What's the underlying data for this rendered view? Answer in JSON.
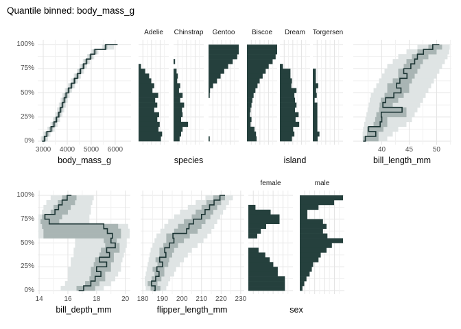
{
  "title": "Quantile binned: body_mass_g",
  "colors": {
    "bar": "#25403d",
    "line": "#1b3433",
    "band_inner": "#a9b5b4",
    "band_outer": "#dfe4e4",
    "grid_major": "#e3e3e3",
    "grid_minor": "#f1f1f1",
    "tick_text": "#4d4d4d",
    "title_text": "#000000",
    "background": "#ffffff"
  },
  "y_axis": {
    "tick_labels": [
      "100%",
      "75%",
      "50%",
      "25%",
      "0%"
    ],
    "tick_levels": [
      100,
      75,
      50,
      25,
      0
    ]
  },
  "quantile_levels_pct": [
    0,
    5,
    10,
    15,
    20,
    25,
    30,
    35,
    40,
    45,
    50,
    55,
    60,
    65,
    70,
    75,
    80,
    85,
    90,
    95,
    100
  ],
  "bars_order": "top_to_bottom",
  "chart_data": [
    {
      "id": "body_mass_g",
      "type": "quantile-step",
      "row": 0,
      "xlabel": "body_mass_g",
      "x_ticks": [
        3000,
        4000,
        5000,
        6000
      ],
      "x_tick_labels": [
        "3000",
        "4000",
        "5000",
        "6000"
      ],
      "x_minor": [
        3500,
        4500,
        5500
      ],
      "x_range": [
        2770,
        6660
      ],
      "x_min_cap": 2950,
      "x_max_cap": 6100,
      "bin_values": [
        3050,
        3150,
        3325,
        3450,
        3550,
        3650,
        3725,
        3800,
        3875,
        3950,
        4050,
        4175,
        4300,
        4425,
        4550,
        4675,
        4800,
        4975,
        5150,
        5600
      ],
      "band_inner": [
        [
          2980,
          3120
        ],
        [
          3080,
          3220
        ],
        [
          3255,
          3395
        ],
        [
          3380,
          3520
        ],
        [
          3480,
          3620
        ],
        [
          3580,
          3720
        ],
        [
          3655,
          3795
        ],
        [
          3730,
          3870
        ],
        [
          3805,
          3945
        ],
        [
          3880,
          4020
        ],
        [
          3980,
          4120
        ],
        [
          4105,
          4245
        ],
        [
          4230,
          4370
        ],
        [
          4355,
          4495
        ],
        [
          4480,
          4620
        ],
        [
          4605,
          4745
        ],
        [
          4730,
          4870
        ],
        [
          4905,
          5045
        ],
        [
          5080,
          5220
        ],
        [
          5530,
          5670
        ]
      ],
      "band_outer": [
        [
          2900,
          3200
        ],
        [
          3000,
          3300
        ],
        [
          3175,
          3475
        ],
        [
          3300,
          3600
        ],
        [
          3400,
          3700
        ],
        [
          3500,
          3800
        ],
        [
          3575,
          3875
        ],
        [
          3650,
          3950
        ],
        [
          3725,
          4025
        ],
        [
          3800,
          4100
        ],
        [
          3900,
          4200
        ],
        [
          4025,
          4325
        ],
        [
          4150,
          4450
        ],
        [
          4275,
          4575
        ],
        [
          4400,
          4700
        ],
        [
          4525,
          4825
        ],
        [
          4650,
          4950
        ],
        [
          4825,
          5125
        ],
        [
          5000,
          5300
        ],
        [
          5450,
          5950
        ]
      ],
      "y_labels": true
    },
    {
      "id": "species",
      "type": "facet-bars",
      "row": 0,
      "xlabel": "species",
      "facets": [
        {
          "label": "Adelie",
          "bars": [
            0,
            0,
            0,
            0,
            0.08,
            0.22,
            0.35,
            0.42,
            0.52,
            0.46,
            0.65,
            0.55,
            0.62,
            0.52,
            0.68,
            0.62,
            0.7,
            0.66,
            0.78,
            0.74
          ]
        },
        {
          "label": "Chinstrap",
          "bars": [
            0,
            0,
            0,
            0.05,
            0,
            0.1,
            0.14,
            0.12,
            0.22,
            0.18,
            0.3,
            0.22,
            0.35,
            0.28,
            0.3,
            0.25,
            0.48,
            0.3,
            0.25,
            0.2
          ]
        },
        {
          "label": "Gentoo",
          "bars": [
            1,
            1,
            0.95,
            0.8,
            0.65,
            0.52,
            0.4,
            0.28,
            0.15,
            0.05,
            0.04,
            0,
            0,
            0,
            0,
            0,
            0,
            0,
            0,
            0.04
          ]
        }
      ]
    },
    {
      "id": "island",
      "type": "facet-bars",
      "row": 0,
      "xlabel": "island",
      "facets": [
        {
          "label": "Biscoe",
          "bars": [
            1,
            1,
            0.95,
            0.85,
            0.72,
            0.62,
            0.52,
            0.42,
            0.35,
            0.28,
            0.22,
            0.18,
            0.15,
            0.12,
            0.1,
            0.15,
            0.12,
            0.25,
            0.3,
            0.32
          ]
        },
        {
          "label": "Dream",
          "bars": [
            0,
            0,
            0,
            0,
            0.1,
            0.35,
            0.35,
            0.4,
            0.38,
            0.55,
            0.48,
            0.5,
            0.55,
            0.5,
            0.62,
            0.52,
            0.64,
            0.44,
            0.48,
            0.4
          ]
        },
        {
          "label": "Torgersen",
          "bars": [
            0,
            0,
            0,
            0,
            0,
            0.1,
            0.1,
            0.1,
            0.18,
            0.11,
            0.13,
            0.06,
            0.15,
            0.15,
            0.15,
            0.15,
            0.15,
            0.15,
            0.22,
            0.16
          ]
        }
      ]
    },
    {
      "id": "bill_length_mm",
      "type": "quantile-step",
      "row": 0,
      "xlabel": "bill_length_mm",
      "x_ticks": [
        40,
        45,
        50
      ],
      "x_tick_labels": [
        "40",
        "45",
        "50"
      ],
      "x_minor": [
        37.5,
        42.5,
        47.5,
        52.5
      ],
      "x_range": [
        34.8,
        52.7
      ],
      "x_min_cap": 36.6,
      "x_max_cap": 50.5,
      "bin_values": [
        37.0,
        38.9,
        37.6,
        39.7,
        40.0,
        39.9,
        43.7,
        40.2,
        40.7,
        42.2,
        43.5,
        42.7,
        43.3,
        44.6,
        44.0,
        45.3,
        46.0,
        46.5,
        47.6,
        49.3
      ],
      "band_inner": [
        [
          36.6,
          39.4
        ],
        [
          37.3,
          39.4
        ],
        [
          37.3,
          40.3
        ],
        [
          38.5,
          41.0
        ],
        [
          38.8,
          41.0
        ],
        [
          39.0,
          44.5
        ],
        [
          39.5,
          44.5
        ],
        [
          39.6,
          42.0
        ],
        [
          39.8,
          43.0
        ],
        [
          40.5,
          44.0
        ],
        [
          41.0,
          45.0
        ],
        [
          41.0,
          45.0
        ],
        [
          42.0,
          45.5
        ],
        [
          43.0,
          46.0
        ],
        [
          43.0,
          46.5
        ],
        [
          44.0,
          47.0
        ],
        [
          44.5,
          47.5
        ],
        [
          45.5,
          48.5
        ],
        [
          46.5,
          50.0
        ],
        [
          48.5,
          51.0
        ]
      ],
      "band_outer": [
        [
          36.5,
          41.0
        ],
        [
          36.5,
          42.0
        ],
        [
          36.6,
          43.0
        ],
        [
          36.8,
          44.5
        ],
        [
          37.0,
          45.5
        ],
        [
          37.2,
          46.0
        ],
        [
          37.4,
          46.5
        ],
        [
          37.6,
          47.0
        ],
        [
          37.8,
          47.5
        ],
        [
          38.0,
          48.0
        ],
        [
          38.5,
          48.5
        ],
        [
          39.0,
          49.0
        ],
        [
          39.5,
          49.5
        ],
        [
          40.0,
          50.0
        ],
        [
          40.5,
          50.5
        ],
        [
          41.0,
          51.0
        ],
        [
          42.0,
          51.5
        ],
        [
          43.0,
          52.0
        ],
        [
          44.5,
          52.3
        ],
        [
          46.5,
          52.4
        ]
      ]
    },
    {
      "id": "bill_depth_mm",
      "type": "quantile-step",
      "row": 1,
      "xlabel": "bill_depth_mm",
      "x_ticks": [
        14,
        16,
        18,
        20
      ],
      "x_tick_labels": [
        "14",
        "16",
        "18",
        "20"
      ],
      "x_minor": [
        15,
        17,
        19
      ],
      "x_range": [
        13.9,
        20.35
      ],
      "x_min_cap": 16.75,
      "x_max_cap": 16.25,
      "bin_values": [
        17.1,
        17.6,
        17.9,
        18.3,
        18.0,
        18.7,
        18.2,
        18.9,
        18.7,
        19.3,
        19.0,
        19.1,
        18.75,
        18.5,
        14.7,
        14.4,
        15.1,
        15.35,
        15.6,
        15.95
      ],
      "band_inner": [
        [
          16.6,
          17.9
        ],
        [
          17.2,
          18.2
        ],
        [
          17.5,
          18.6
        ],
        [
          17.6,
          18.6
        ],
        [
          17.6,
          19.0
        ],
        [
          17.8,
          19.0
        ],
        [
          17.9,
          19.2
        ],
        [
          18.2,
          19.2
        ],
        [
          18.3,
          19.6
        ],
        [
          18.6,
          19.6
        ],
        [
          18.5,
          19.4
        ],
        [
          14.3,
          19.7
        ],
        [
          14.3,
          19.7
        ],
        [
          14.2,
          19.5
        ],
        [
          14.1,
          15.4
        ],
        [
          14.2,
          15.6
        ],
        [
          14.8,
          16.0
        ],
        [
          15.0,
          16.2
        ],
        [
          15.3,
          16.5
        ],
        [
          15.6,
          16.6
        ]
      ],
      "band_outer": [
        [
          15.5,
          18.5
        ],
        [
          15.8,
          19.0
        ],
        [
          16.0,
          19.3
        ],
        [
          16.0,
          19.5
        ],
        [
          16.0,
          19.7
        ],
        [
          16.2,
          19.7
        ],
        [
          16.2,
          19.8
        ],
        [
          16.4,
          19.9
        ],
        [
          16.4,
          20.0
        ],
        [
          16.5,
          20.1
        ],
        [
          16.5,
          20.1
        ],
        [
          13.95,
          20.3
        ],
        [
          13.95,
          20.3
        ],
        [
          13.95,
          20.2
        ],
        [
          13.95,
          17.5
        ],
        [
          13.95,
          17.5
        ],
        [
          14.2,
          17.6
        ],
        [
          14.3,
          17.6
        ],
        [
          14.5,
          17.7
        ],
        [
          14.8,
          17.8
        ]
      ],
      "y_labels": true
    },
    {
      "id": "flipper_length_mm",
      "type": "quantile-step",
      "row": 1,
      "xlabel": "flipper_length_mm",
      "x_ticks": [
        180,
        190,
        200,
        210,
        220,
        230
      ],
      "x_tick_labels": [
        "180",
        "190",
        "200",
        "210",
        "220",
        "230"
      ],
      "x_minor": [
        185,
        195,
        205,
        215,
        225
      ],
      "x_range": [
        178.9,
        231.8
      ],
      "x_min_cap": 185.5,
      "x_max_cap": 222,
      "bin_values": [
        186.3,
        184.5,
        186.6,
        188.3,
        187.2,
        190.1,
        188.6,
        191.8,
        191.2,
        193.6,
        195.9,
        195.4,
        202.4,
        203.6,
        205.9,
        210,
        211.8,
        214.1,
        216.4,
        219.4
      ],
      "band_inner": [
        [
          184,
          189
        ],
        [
          182.5,
          187.5
        ],
        [
          184.5,
          189.5
        ],
        [
          186,
          191
        ],
        [
          185,
          191
        ],
        [
          187.5,
          193
        ],
        [
          186.5,
          193.5
        ],
        [
          188.5,
          195
        ],
        [
          188.5,
          196
        ],
        [
          190.5,
          198
        ],
        [
          192,
          201
        ],
        [
          192,
          204
        ],
        [
          196,
          208
        ],
        [
          198,
          210
        ],
        [
          201,
          212
        ],
        [
          205,
          214.5
        ],
        [
          207,
          216
        ],
        [
          210,
          218
        ],
        [
          212.5,
          220
        ],
        [
          216,
          222
        ]
      ],
      "band_outer": [
        [
          181.5,
          192
        ],
        [
          181,
          193
        ],
        [
          181,
          194
        ],
        [
          181.5,
          196
        ],
        [
          182,
          197
        ],
        [
          182.5,
          199
        ],
        [
          183,
          201
        ],
        [
          183.5,
          203
        ],
        [
          184,
          205
        ],
        [
          185,
          208
        ],
        [
          186,
          211
        ],
        [
          187,
          213
        ],
        [
          189,
          215
        ],
        [
          191,
          216.5
        ],
        [
          193,
          218
        ],
        [
          196,
          219.5
        ],
        [
          199,
          221
        ],
        [
          203,
          222.5
        ],
        [
          207,
          224
        ],
        [
          212,
          226
        ]
      ]
    },
    {
      "id": "sex",
      "type": "facet-bars",
      "row": 1,
      "xlabel": "sex",
      "facets": [
        {
          "label": "female",
          "bars": [
            0,
            0,
            0.16,
            0.5,
            0.7,
            0.7,
            0.4,
            0.28,
            0.2,
            0,
            0,
            0.23,
            0.38,
            0.48,
            0.56,
            0.66,
            0.66,
            0.82,
            0.82,
            0.82
          ]
        },
        {
          "label": "male",
          "bars": [
            0.97,
            0.77,
            0.42,
            0.17,
            0.17,
            0.52,
            0.6,
            0.52,
            0.62,
            0.97,
            0.72,
            0.6,
            0.47,
            0.42,
            0.3,
            0.27,
            0.22,
            0.15,
            0.1,
            0.06
          ]
        }
      ]
    }
  ]
}
